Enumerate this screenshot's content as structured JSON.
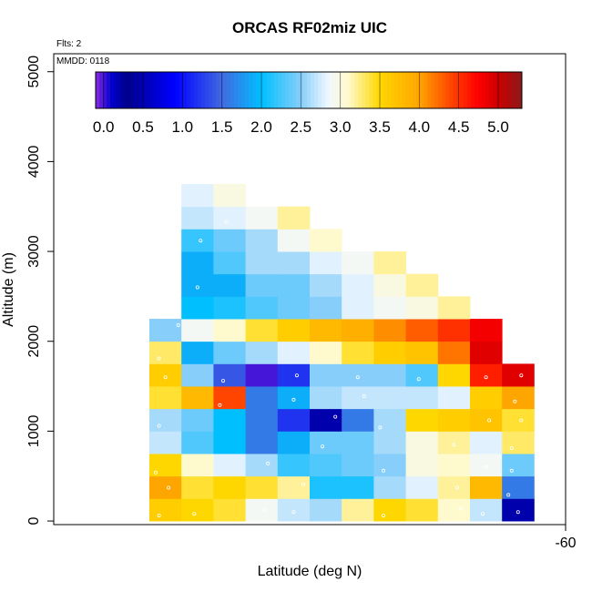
{
  "chart_data": {
    "type": "heatmap",
    "title": "ORCAS RF02miz UIC",
    "annotations": {
      "flights": "Flts: 2",
      "date": "MMDD: 0118"
    },
    "xlabel": "Latitude (deg N)",
    "ylabel": "Altitude (m)",
    "x_tick_labels": [
      "-60"
    ],
    "y_tick_labels": [
      "0",
      "1000",
      "2000",
      "3000",
      "4000",
      "5000"
    ],
    "y_ticks": [
      0,
      1000,
      2000,
      3000,
      4000,
      5000
    ],
    "ylim": [
      -40,
      5200
    ],
    "colorbar": {
      "labels": [
        "0.0",
        "0.5",
        "1.0",
        "1.5",
        "2.0",
        "2.5",
        "3.0",
        "3.5",
        "4.0",
        "4.5",
        "5.0"
      ],
      "values": [
        0.0,
        0.5,
        1.0,
        1.5,
        2.0,
        2.5,
        3.0,
        3.5,
        4.0,
        4.5,
        5.0
      ],
      "range": [
        -0.1,
        5.3
      ],
      "stops": [
        {
          "v": -0.1,
          "c": "#8a2be2"
        },
        {
          "v": 0.1,
          "c": "#0000cd"
        },
        {
          "v": 0.3,
          "c": "#00008b"
        },
        {
          "v": 0.9,
          "c": "#0000ff"
        },
        {
          "v": 1.5,
          "c": "#4169e1"
        },
        {
          "v": 2.0,
          "c": "#00bfff"
        },
        {
          "v": 2.5,
          "c": "#87cefa"
        },
        {
          "v": 2.85,
          "c": "#f0f8ff"
        },
        {
          "v": 3.1,
          "c": "#fffacd"
        },
        {
          "v": 3.5,
          "c": "#ffd700"
        },
        {
          "v": 4.0,
          "c": "#ffa500"
        },
        {
          "v": 4.4,
          "c": "#ff4500"
        },
        {
          "v": 4.75,
          "c": "#ff0000"
        },
        {
          "v": 5.0,
          "c": "#cc0000"
        },
        {
          "v": 5.3,
          "c": "#8b1a1a"
        }
      ]
    },
    "columns": 12,
    "row_bottoms_m": [
      0,
      250,
      500,
      750,
      1000,
      1250,
      1500,
      1750,
      2000,
      2250,
      2500,
      2750,
      3000,
      3250,
      3500
    ],
    "row_height_m": 250,
    "values": [
      [
        3.6,
        3.5,
        3.4,
        2.9,
        2.7,
        2.6,
        3.2,
        3.5,
        3.4,
        3.1,
        2.7,
        0.2
      ],
      [
        4.0,
        3.4,
        3.5,
        3.4,
        3.2,
        2.1,
        2.1,
        2.6,
        2.8,
        3.2,
        3.8,
        1.6
      ],
      [
        3.5,
        3.1,
        2.8,
        2.6,
        2.2,
        2.3,
        2.4,
        2.5,
        3.0,
        3.1,
        2.9,
        2.4
      ],
      [
        2.7,
        2.3,
        2.0,
        1.6,
        1.9,
        2.4,
        2.4,
        2.6,
        3.0,
        3.2,
        2.8,
        3.3
      ],
      [
        2.6,
        2.4,
        2.0,
        1.6,
        1.2,
        0.2,
        1.6,
        2.6,
        3.5,
        3.6,
        3.7,
        3.4
      ],
      [
        3.4,
        3.8,
        4.4,
        1.6,
        1.9,
        2.6,
        2.7,
        2.7,
        2.7,
        2.8,
        3.6,
        4.0
      ],
      [
        3.6,
        2.5,
        1.4,
        0.0,
        1.2,
        2.5,
        2.5,
        2.5,
        2.3,
        3.5,
        4.6,
        4.9
      ],
      [
        3.3,
        1.9,
        2.4,
        2.6,
        2.8,
        3.1,
        3.4,
        3.6,
        3.7,
        4.2,
        4.9,
        null
      ],
      [
        2.5,
        2.9,
        3.1,
        3.4,
        3.6,
        3.8,
        3.9,
        4.1,
        4.3,
        4.5,
        4.8,
        null
      ],
      [
        null,
        2.0,
        2.1,
        2.3,
        2.4,
        2.5,
        2.8,
        2.9,
        3.0,
        3.2,
        null,
        null
      ],
      [
        null,
        1.9,
        1.9,
        2.4,
        2.4,
        2.6,
        2.8,
        3.0,
        3.2,
        null,
        null,
        null
      ],
      [
        null,
        1.9,
        2.3,
        2.6,
        2.6,
        2.8,
        2.9,
        3.2,
        null,
        null,
        null,
        null
      ],
      [
        null,
        2.2,
        2.4,
        2.6,
        2.9,
        3.1,
        null,
        null,
        null,
        null,
        null,
        null
      ],
      [
        null,
        2.7,
        2.8,
        2.9,
        3.2,
        null,
        null,
        null,
        null,
        null,
        null,
        null
      ],
      [
        null,
        2.8,
        3.0,
        null,
        null,
        null,
        null,
        null,
        null,
        null,
        null,
        null
      ]
    ]
  }
}
